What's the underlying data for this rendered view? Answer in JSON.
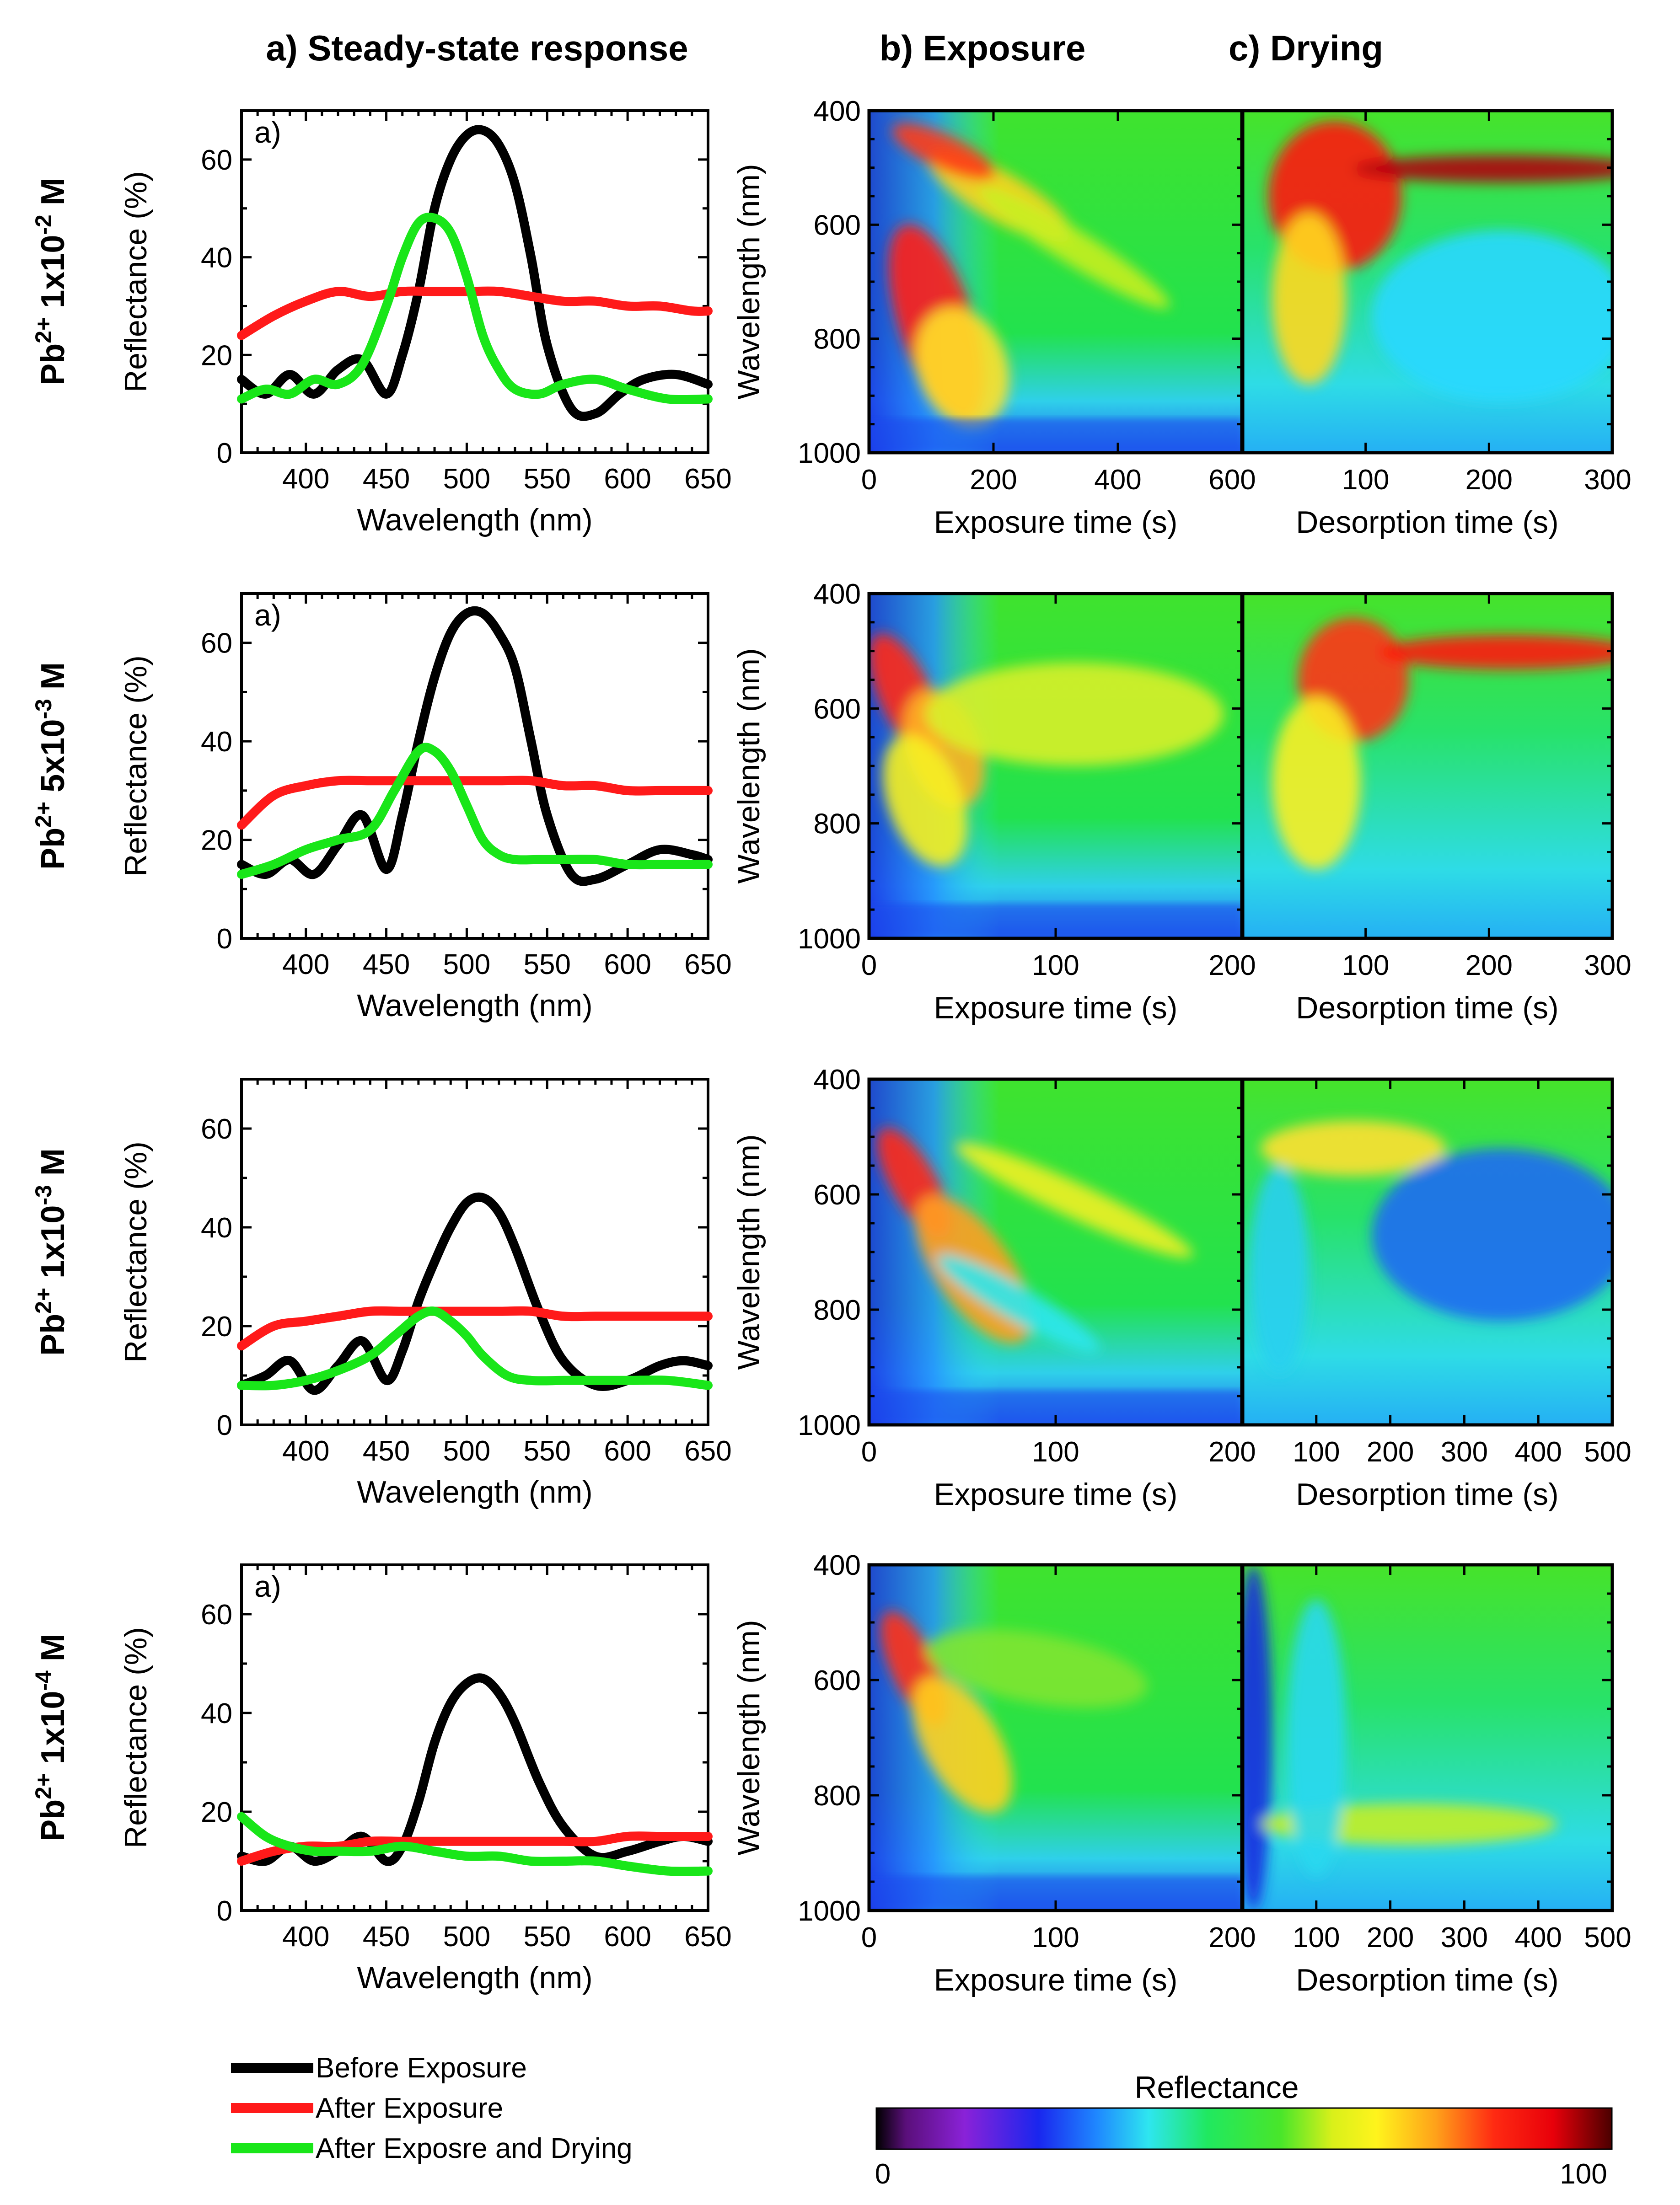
{
  "headers": {
    "steady": "a) Steady-state response",
    "exposure": "b) Exposure",
    "drying": "c) Drying"
  },
  "colors": {
    "before": "#000000",
    "after_exposure": "#ff1a1a",
    "after_drying": "#19e619"
  },
  "legend": {
    "before": "Before Exposure",
    "after_exposure": "After Exposure",
    "after_drying": "After Exposre and Drying"
  },
  "colorbar": {
    "title": "Reflectance",
    "min": "0",
    "max": "100"
  },
  "chart_data": [
    {
      "type": "line",
      "row_label": {
        "base": "Pb",
        "sup1": "2+",
        "mid": " 1x10",
        "sup2": "-2",
        "unit": " M"
      },
      "panel_tag": "a)",
      "xlabel": "Wavelength (nm)",
      "ylabel": "Reflectance (%)",
      "xlim": [
        360,
        650
      ],
      "ylim": [
        0,
        70
      ],
      "xticks": [
        400,
        450,
        500,
        550,
        600,
        650
      ],
      "yticks": [
        0,
        20,
        40,
        60
      ],
      "series": [
        {
          "key": "before",
          "x": [
            360,
            375,
            390,
            405,
            420,
            435,
            450,
            460,
            470,
            480,
            490,
            500,
            510,
            520,
            530,
            540,
            550,
            565,
            580,
            595,
            610,
            630,
            650
          ],
          "y": [
            15,
            12,
            16,
            12,
            17,
            19,
            12,
            20,
            33,
            50,
            60,
            65,
            66,
            63,
            55,
            40,
            22,
            9,
            8,
            12,
            15,
            16,
            14
          ]
        },
        {
          "key": "after_exposure",
          "x": [
            360,
            380,
            400,
            420,
            440,
            460,
            480,
            500,
            520,
            540,
            560,
            580,
            600,
            620,
            640,
            650
          ],
          "y": [
            24,
            28,
            31,
            33,
            32,
            33,
            33,
            33,
            33,
            32,
            31,
            31,
            30,
            30,
            29,
            29
          ]
        },
        {
          "key": "after_drying",
          "x": [
            360,
            375,
            390,
            405,
            420,
            435,
            450,
            460,
            470,
            480,
            490,
            500,
            510,
            520,
            530,
            545,
            560,
            580,
            600,
            625,
            650
          ],
          "y": [
            11,
            13,
            12,
            15,
            14,
            18,
            30,
            40,
            47,
            48,
            45,
            36,
            24,
            17,
            13,
            12,
            14,
            15,
            13,
            11,
            11
          ]
        }
      ]
    },
    {
      "type": "line",
      "row_label": {
        "base": "Pb",
        "sup1": "2+",
        "mid": " 5x10",
        "sup2": "-3",
        "unit": " M"
      },
      "panel_tag": "a)",
      "xlabel": "Wavelength (nm)",
      "ylabel": "Reflectance (%)",
      "xlim": [
        360,
        650
      ],
      "ylim": [
        0,
        70
      ],
      "xticks": [
        400,
        450,
        500,
        550,
        600,
        650
      ],
      "yticks": [
        0,
        20,
        40,
        60
      ],
      "series": [
        {
          "key": "before",
          "x": [
            360,
            375,
            390,
            405,
            420,
            435,
            450,
            460,
            470,
            480,
            490,
            500,
            510,
            520,
            530,
            540,
            550,
            565,
            580,
            600,
            620,
            640,
            650
          ],
          "y": [
            15,
            13,
            16,
            13,
            19,
            25,
            14,
            25,
            40,
            53,
            62,
            66,
            66,
            62,
            55,
            40,
            25,
            13,
            12,
            15,
            18,
            17,
            16
          ]
        },
        {
          "key": "after_exposure",
          "x": [
            360,
            380,
            400,
            420,
            440,
            460,
            480,
            500,
            520,
            540,
            560,
            580,
            600,
            620,
            640,
            650
          ],
          "y": [
            23,
            29,
            31,
            32,
            32,
            32,
            32,
            32,
            32,
            32,
            31,
            31,
            30,
            30,
            30,
            30
          ]
        },
        {
          "key": "after_drying",
          "x": [
            360,
            380,
            400,
            420,
            440,
            455,
            470,
            480,
            490,
            500,
            510,
            520,
            530,
            545,
            560,
            580,
            600,
            625,
            650
          ],
          "y": [
            13,
            15,
            18,
            20,
            22,
            30,
            38,
            38,
            34,
            27,
            20,
            17,
            16,
            16,
            16,
            16,
            15,
            15,
            15
          ]
        }
      ]
    },
    {
      "type": "line",
      "row_label": {
        "base": "Pb",
        "sup1": "2+",
        "mid": " 1x10",
        "sup2": "-3",
        "unit": " M"
      },
      "panel_tag": "",
      "xlabel": "Wavelength (nm)",
      "ylabel": "Reflectance (%)",
      "xlim": [
        360,
        650
      ],
      "ylim": [
        0,
        70
      ],
      "xticks": [
        400,
        450,
        500,
        550,
        600,
        650
      ],
      "yticks": [
        0,
        20,
        40,
        60
      ],
      "series": [
        {
          "key": "before",
          "x": [
            360,
            375,
            390,
            405,
            420,
            435,
            450,
            460,
            470,
            480,
            490,
            500,
            510,
            520,
            530,
            545,
            560,
            580,
            600,
            620,
            635,
            650
          ],
          "y": [
            8,
            10,
            13,
            7,
            12,
            17,
            9,
            15,
            25,
            33,
            40,
            45,
            46,
            43,
            36,
            23,
            13,
            8,
            9,
            12,
            13,
            12
          ]
        },
        {
          "key": "after_exposure",
          "x": [
            360,
            380,
            400,
            420,
            440,
            460,
            480,
            500,
            520,
            540,
            560,
            580,
            600,
            620,
            640,
            650
          ],
          "y": [
            16,
            20,
            21,
            22,
            23,
            23,
            23,
            23,
            23,
            23,
            22,
            22,
            22,
            22,
            22,
            22
          ]
        },
        {
          "key": "after_drying",
          "x": [
            360,
            380,
            400,
            420,
            440,
            455,
            470,
            480,
            490,
            500,
            510,
            525,
            540,
            560,
            580,
            600,
            625,
            650
          ],
          "y": [
            8,
            8,
            9,
            11,
            14,
            18,
            22,
            23,
            21,
            18,
            14,
            10,
            9,
            9,
            9,
            9,
            9,
            8
          ]
        }
      ]
    },
    {
      "type": "line",
      "row_label": {
        "base": "Pb",
        "sup1": "2+",
        "mid": " 1x10",
        "sup2": "-4",
        "unit": " M"
      },
      "panel_tag": "a)",
      "xlabel": "Wavelength (nm)",
      "ylabel": "Reflectance (%)",
      "xlim": [
        360,
        650
      ],
      "ylim": [
        0,
        70
      ],
      "xticks": [
        400,
        450,
        500,
        550,
        600,
        650
      ],
      "yticks": [
        0,
        20,
        40,
        60
      ],
      "series": [
        {
          "key": "before",
          "x": [
            360,
            375,
            390,
            405,
            420,
            435,
            450,
            460,
            470,
            480,
            490,
            500,
            510,
            520,
            530,
            545,
            560,
            580,
            600,
            620,
            635,
            650
          ],
          "y": [
            11,
            10,
            13,
            10,
            12,
            15,
            10,
            13,
            22,
            34,
            42,
            46,
            47,
            44,
            38,
            26,
            17,
            11,
            12,
            14,
            15,
            14
          ]
        },
        {
          "key": "after_exposure",
          "x": [
            360,
            380,
            400,
            420,
            440,
            460,
            480,
            500,
            520,
            540,
            560,
            580,
            600,
            620,
            640,
            650
          ],
          "y": [
            10,
            12,
            13,
            13,
            14,
            14,
            14,
            14,
            14,
            14,
            14,
            14,
            15,
            15,
            15,
            15
          ]
        },
        {
          "key": "after_drying",
          "x": [
            360,
            375,
            390,
            405,
            420,
            440,
            460,
            480,
            500,
            520,
            540,
            560,
            580,
            600,
            625,
            650
          ],
          "y": [
            19,
            15,
            13,
            12,
            12,
            12,
            13,
            12,
            11,
            11,
            10,
            10,
            10,
            9,
            8,
            8
          ]
        }
      ]
    }
  ],
  "heatmaps": [
    {
      "type": "heatmap",
      "ylabel": "Wavelength (nm)",
      "ylim": [
        400,
        1000
      ],
      "yticks": [
        400,
        600,
        800,
        1000
      ],
      "exposure": {
        "xlabel": "Exposure time (s)",
        "xlim": [
          0,
          600
        ],
        "xticks": [
          0,
          200,
          400,
          600
        ]
      },
      "drying": {
        "xlabel": "Desorption time (s)",
        "xlim": [
          0,
          300
        ],
        "xticks": [
          100,
          200,
          300
        ]
      }
    },
    {
      "type": "heatmap",
      "ylabel": "Wavelength (nm)",
      "ylim": [
        400,
        1000
      ],
      "yticks": [
        400,
        600,
        800,
        1000
      ],
      "exposure": {
        "xlabel": "Exposure time (s)",
        "xlim": [
          0,
          200
        ],
        "xticks": [
          0,
          100,
          200
        ]
      },
      "drying": {
        "xlabel": "Desorption time (s)",
        "xlim": [
          0,
          300
        ],
        "xticks": [
          100,
          200,
          300
        ]
      }
    },
    {
      "type": "heatmap",
      "ylabel": "Wavelength (nm)",
      "ylim": [
        400,
        1000
      ],
      "yticks": [
        400,
        600,
        800,
        1000
      ],
      "exposure": {
        "xlabel": "Exposure time (s)",
        "xlim": [
          0,
          200
        ],
        "xticks": [
          0,
          100,
          200
        ]
      },
      "drying": {
        "xlabel": "Desorption time (s)",
        "xlim": [
          0,
          500
        ],
        "xticks": [
          100,
          200,
          300,
          400,
          500
        ]
      }
    },
    {
      "type": "heatmap",
      "ylabel": "Wavelength (nm)",
      "ylim": [
        400,
        1000
      ],
      "yticks": [
        400,
        600,
        800,
        1000
      ],
      "exposure": {
        "xlabel": "Exposure time (s)",
        "xlim": [
          0,
          200
        ],
        "xticks": [
          0,
          100,
          200
        ]
      },
      "drying": {
        "xlabel": "Desorption time (s)",
        "xlim": [
          0,
          500
        ],
        "xticks": [
          100,
          200,
          300,
          400,
          500
        ]
      }
    }
  ]
}
